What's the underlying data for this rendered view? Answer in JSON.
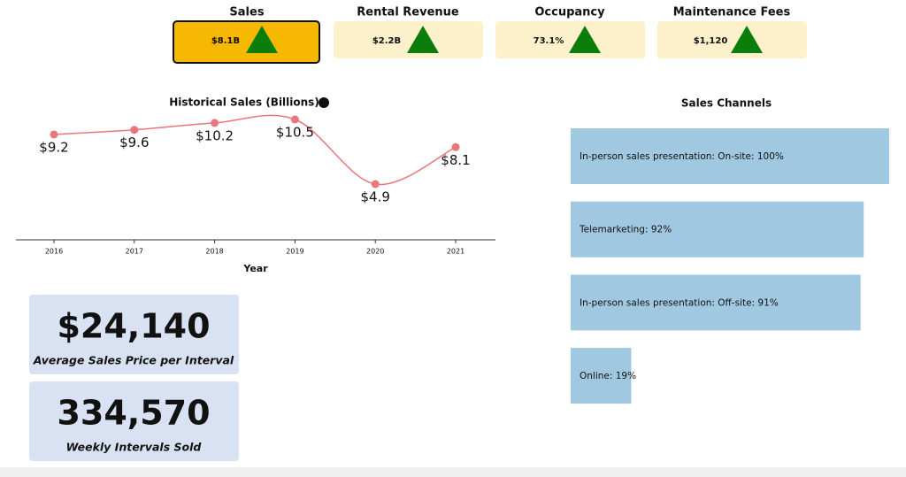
{
  "kpis": [
    {
      "title": "Sales",
      "value": "$8.1B"
    },
    {
      "title": "Rental Revenue",
      "value": "$2.2B"
    },
    {
      "title": "Occupancy",
      "value": "73.1%"
    },
    {
      "title": "Maintenance Fees",
      "value": "$1,120"
    }
  ],
  "chart_data": [
    {
      "type": "line",
      "title": "Historical Sales (Billions)",
      "x_label": "Year",
      "categories": [
        "2016",
        "2017",
        "2018",
        "2019",
        "2020",
        "2021"
      ],
      "values": [
        9.2,
        9.6,
        10.2,
        10.5,
        4.9,
        8.1
      ],
      "value_labels": [
        "$9.2",
        "$9.6",
        "$10.2",
        "$10.5",
        "$4.9",
        "$8.1"
      ],
      "color": "#e8767a"
    },
    {
      "type": "hbar",
      "title": "Sales Channels",
      "values": [
        100,
        92,
        91,
        19
      ],
      "value_labels": [
        "In-person sales presentation: On-site: 100%",
        "Telemarketing: 92%",
        "In-person sales presentation: Off-site: 91%",
        "Online: 19%"
      ],
      "color": "#a0c8e0"
    }
  ],
  "stats": [
    {
      "value": "$24,140",
      "label": "Average Sales Price per Interval"
    },
    {
      "value": "334,570",
      "label": "Weekly Intervals Sold"
    }
  ]
}
